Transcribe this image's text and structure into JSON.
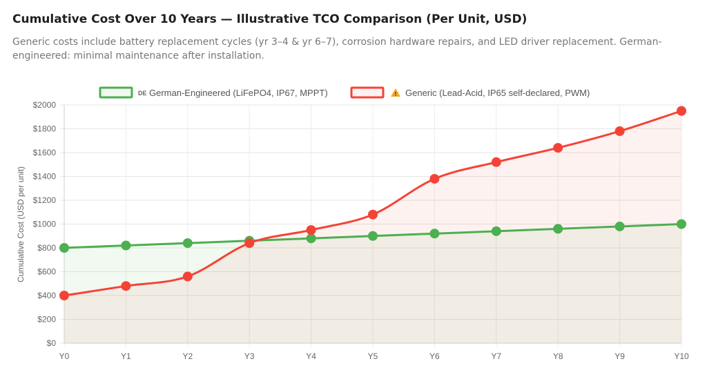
{
  "header": {
    "title": "Cumulative Cost Over 10 Years — Illustrative TCO Comparison (Per Unit, USD)",
    "subtitle": "Generic costs include battery replacement cycles (yr 3–4 & yr 6–7), corrosion hardware repairs, and LED driver replacement. German-engineered: minimal maintenance after installation."
  },
  "chart_data": {
    "type": "line",
    "title": "Cumulative Cost Over 10 Years — Illustrative TCO Comparison (Per Unit, USD)",
    "subtitle": "Generic costs include battery replacement cycles (yr 3–4 & yr 6–7), corrosion hardware repairs, and LED driver replacement. German-engineered: minimal maintenance after installation.",
    "xlabel": "",
    "ylabel": "Cumulative Cost (USD per unit)",
    "categories": [
      "Y0",
      "Y1",
      "Y2",
      "Y3",
      "Y4",
      "Y5",
      "Y6",
      "Y7",
      "Y8",
      "Y9",
      "Y10"
    ],
    "ylim": [
      0,
      2000
    ],
    "yticks": [
      0,
      200,
      400,
      600,
      800,
      1000,
      1200,
      1400,
      1600,
      1800,
      2000
    ],
    "ytick_labels": [
      "$0",
      "$200",
      "$400",
      "$600",
      "$800",
      "$1000",
      "$1200",
      "$1400",
      "$1600",
      "$1800",
      "$2000"
    ],
    "grid": true,
    "legend_position": "top-center",
    "series": [
      {
        "name": "German-Engineered (LiFePO4, IP67, MPPT)",
        "prefix": "DE",
        "color": "#4caf50",
        "fill": "rgba(76,175,80,0.08)",
        "values": [
          800,
          820,
          840,
          860,
          880,
          900,
          920,
          940,
          960,
          980,
          1000
        ]
      },
      {
        "name": "Generic (Lead-Acid, IP65 self-declared, PWM)",
        "prefix": "⚠️",
        "color": "#f44336",
        "fill": "rgba(244,67,54,0.07)",
        "values": [
          400,
          480,
          560,
          840,
          950,
          1080,
          1380,
          1520,
          1640,
          1780,
          1950
        ]
      }
    ]
  }
}
